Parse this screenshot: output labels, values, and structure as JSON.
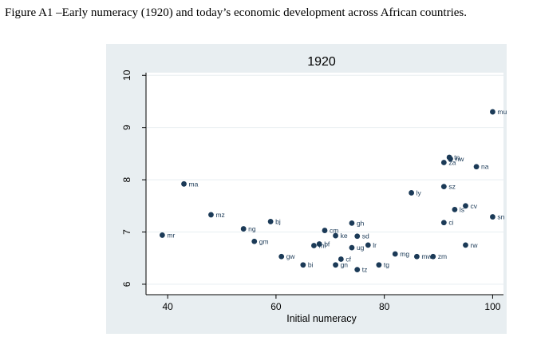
{
  "caption": "Figure A1 –Early numeracy (1920) and today’s economic development across African countries.",
  "chart_data": {
    "type": "scatter",
    "title": "1920",
    "xlabel": "Initial numeracy",
    "ylabel": "",
    "xlim": [
      36,
      102
    ],
    "ylim": [
      5.8,
      10.05
    ],
    "xticks": [
      40,
      60,
      80,
      100
    ],
    "yticks": [
      6,
      7,
      8,
      9,
      10
    ],
    "grid": "horizontal",
    "colors": {
      "marker": "#1b3a57",
      "panel_bg": "#e8eef1",
      "plot_bg": "#ffffff",
      "grid": "#e8eef1"
    },
    "points": [
      {
        "label": "mu",
        "x": 100,
        "y": 9.3
      },
      {
        "label": "tn",
        "x": 92,
        "y": 8.43
      },
      {
        "label": "nw",
        "x": 92.2,
        "y": 8.4
      },
      {
        "label": "za",
        "x": 91,
        "y": 8.33
      },
      {
        "label": "na",
        "x": 97,
        "y": 8.25
      },
      {
        "label": "ma",
        "x": 43,
        "y": 7.92
      },
      {
        "label": "sz",
        "x": 91,
        "y": 7.87
      },
      {
        "label": "ly",
        "x": 85,
        "y": 7.75
      },
      {
        "label": "cv",
        "x": 95,
        "y": 7.5
      },
      {
        "label": "ls",
        "x": 93,
        "y": 7.43
      },
      {
        "label": "mz",
        "x": 48,
        "y": 7.33
      },
      {
        "label": "sn",
        "x": 100,
        "y": 7.29
      },
      {
        "label": "bj",
        "x": 59,
        "y": 7.2
      },
      {
        "label": "ci",
        "x": 91,
        "y": 7.18
      },
      {
        "label": "gh",
        "x": 74,
        "y": 7.17
      },
      {
        "label": "ng",
        "x": 54,
        "y": 7.06
      },
      {
        "label": "cm",
        "x": 69,
        "y": 7.03
      },
      {
        "label": "mr",
        "x": 39,
        "y": 6.94
      },
      {
        "label": "ke",
        "x": 71,
        "y": 6.93
      },
      {
        "label": "sd",
        "x": 75,
        "y": 6.92
      },
      {
        "label": "gm",
        "x": 56,
        "y": 6.82
      },
      {
        "label": "bf",
        "x": 68,
        "y": 6.77
      },
      {
        "label": "ml",
        "x": 67,
        "y": 6.74
      },
      {
        "label": "lr",
        "x": 77,
        "y": 6.75
      },
      {
        "label": "rw",
        "x": 95,
        "y": 6.75
      },
      {
        "label": "ug",
        "x": 74,
        "y": 6.7
      },
      {
        "label": "mg",
        "x": 82,
        "y": 6.58
      },
      {
        "label": "gw",
        "x": 61,
        "y": 6.53
      },
      {
        "label": "mw",
        "x": 86,
        "y": 6.53
      },
      {
        "label": "zm",
        "x": 89,
        "y": 6.53
      },
      {
        "label": "cf",
        "x": 72,
        "y": 6.48
      },
      {
        "label": "bi",
        "x": 65,
        "y": 6.37
      },
      {
        "label": "gn",
        "x": 71,
        "y": 6.37
      },
      {
        "label": "tg",
        "x": 79,
        "y": 6.37
      },
      {
        "label": "tz",
        "x": 75,
        "y": 6.28
      }
    ]
  }
}
